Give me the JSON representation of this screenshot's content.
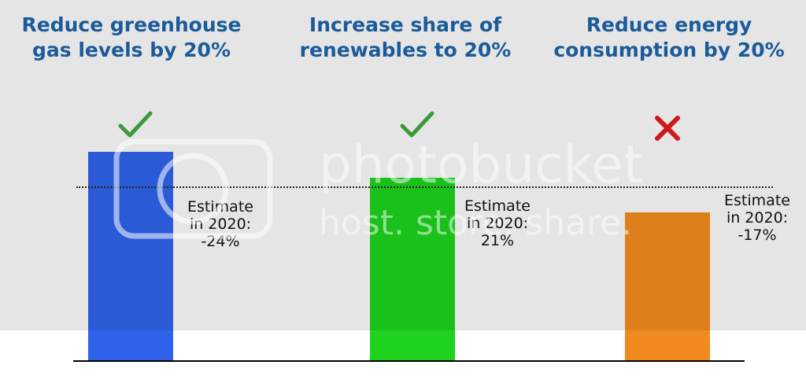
{
  "chart_data": {
    "type": "bar",
    "categories": [
      "Reduce greenhouse gas levels by 20%",
      "Increase share of renewables to 20%",
      "Reduce energy consumption by 20%"
    ],
    "values": [
      24,
      21,
      17
    ],
    "target": 20,
    "ylim": [
      0,
      30
    ],
    "colors": [
      "#2e62e8",
      "#1ed21e",
      "#f08a1e"
    ],
    "status": [
      "check-icon",
      "check-icon",
      "cross-icon"
    ]
  },
  "titles": [
    {
      "line1": "Reduce greenhouse",
      "line2": "gas levels by 20%"
    },
    {
      "line1": "Increase share of",
      "line2": "renewables to 20%"
    },
    {
      "line1": "Reduce energy",
      "line2": "consumption by 20%"
    }
  ],
  "estimates": [
    {
      "line1": "Estimate",
      "line2": "in 2020:",
      "line3": "-24%"
    },
    {
      "line1": "Estimate",
      "line2": "in 2020:",
      "line3": "21%"
    },
    {
      "line1": "Estimate",
      "line2": "in 2020:",
      "line3": "-17%"
    }
  ],
  "watermark": "photobucket host. store. share."
}
